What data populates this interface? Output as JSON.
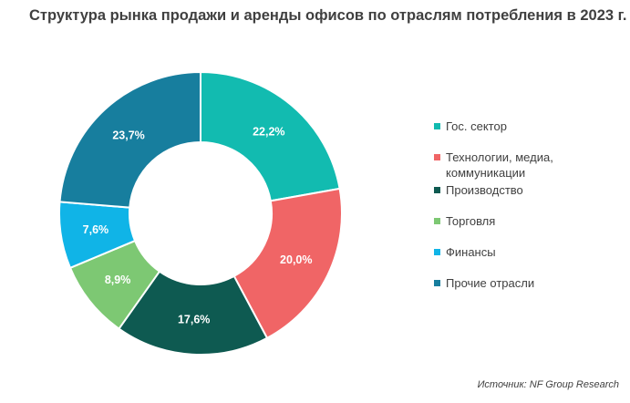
{
  "title": "Структура рынка  продажи и аренды  офисов по отраслям потребления в 2023 г.",
  "source": "Источник: NF Group Research",
  "chart_data": {
    "type": "pie",
    "style": "donut",
    "categories": [
      "Гос. сектор",
      "Технологии, медиа, коммуникации",
      "Производство",
      "Торговля",
      "Финансы",
      "Прочие отрасли"
    ],
    "values": [
      22.2,
      20.0,
      17.6,
      8.9,
      7.6,
      23.7
    ],
    "data_labels": [
      "22,2%",
      "20,0%",
      "17,6%",
      "8,9%",
      "7,6%",
      "23,7%"
    ],
    "colors": [
      "#12BBB0",
      "#F06566",
      "#0E5A51",
      "#7DC873",
      "#10B4E7",
      "#177E9E"
    ],
    "legend_position": "right"
  }
}
